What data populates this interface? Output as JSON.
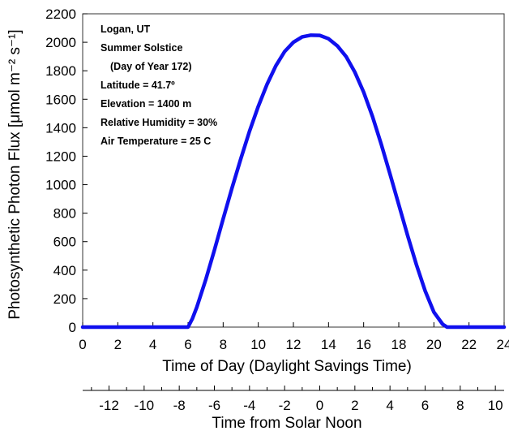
{
  "chart_data": {
    "type": "line",
    "xlabel": "Time of Day (Daylight Savings Time)",
    "ylabel": "Photosynthetic Photon Flux [μmol m⁻² s⁻¹]",
    "xlim": [
      0,
      24
    ],
    "ylim": [
      0,
      2200
    ],
    "x_ticks": [
      "0",
      "2",
      "4",
      "6",
      "8",
      "10",
      "12",
      "14",
      "16",
      "18",
      "20",
      "22",
      "24"
    ],
    "y_ticks": [
      "0",
      "200",
      "400",
      "600",
      "800",
      "1000",
      "1200",
      "1400",
      "1600",
      "1800",
      "2000",
      "2200"
    ],
    "secondary_axis": {
      "label": "Time from Solar Noon",
      "offset_hours": 13.5,
      "ticks": [
        "-12",
        "-10",
        "-8",
        "-6",
        "-4",
        "-2",
        "0",
        "2",
        "4",
        "6",
        "8",
        "10"
      ],
      "minor_ticks": [
        "-13",
        "-11",
        "-9",
        "-7",
        "-5",
        "-3",
        "-1",
        "1",
        "3",
        "5",
        "7",
        "9",
        "11"
      ]
    },
    "annotations": [
      "Logan, UT",
      "Summer Solstice",
      "(Day of Year 172)",
      "Latitude = 41.7º",
      "Elevation = 1400 m",
      "Relative Humidity = 30%",
      "Air Temperature = 25 C"
    ],
    "series": [
      {
        "color": "#1010ee",
        "x": [
          0,
          5.5,
          6,
          6.25,
          6.5,
          7,
          7.5,
          8,
          8.5,
          9,
          9.5,
          10,
          10.5,
          11,
          11.5,
          12,
          12.5,
          13,
          13.5,
          14,
          14.5,
          15,
          15.5,
          16,
          16.5,
          17,
          17.5,
          18,
          18.5,
          19,
          19.5,
          20,
          20.5,
          20.75,
          21,
          21.5,
          24
        ],
        "y": [
          0,
          0,
          0,
          60,
          140,
          330,
          540,
          760,
          975,
          1180,
          1375,
          1550,
          1705,
          1835,
          1935,
          2000,
          2038,
          2050,
          2048,
          2025,
          1975,
          1900,
          1790,
          1650,
          1480,
          1285,
          1075,
          860,
          645,
          440,
          255,
          105,
          20,
          0,
          0,
          0,
          0
        ]
      }
    ],
    "grid": false
  }
}
